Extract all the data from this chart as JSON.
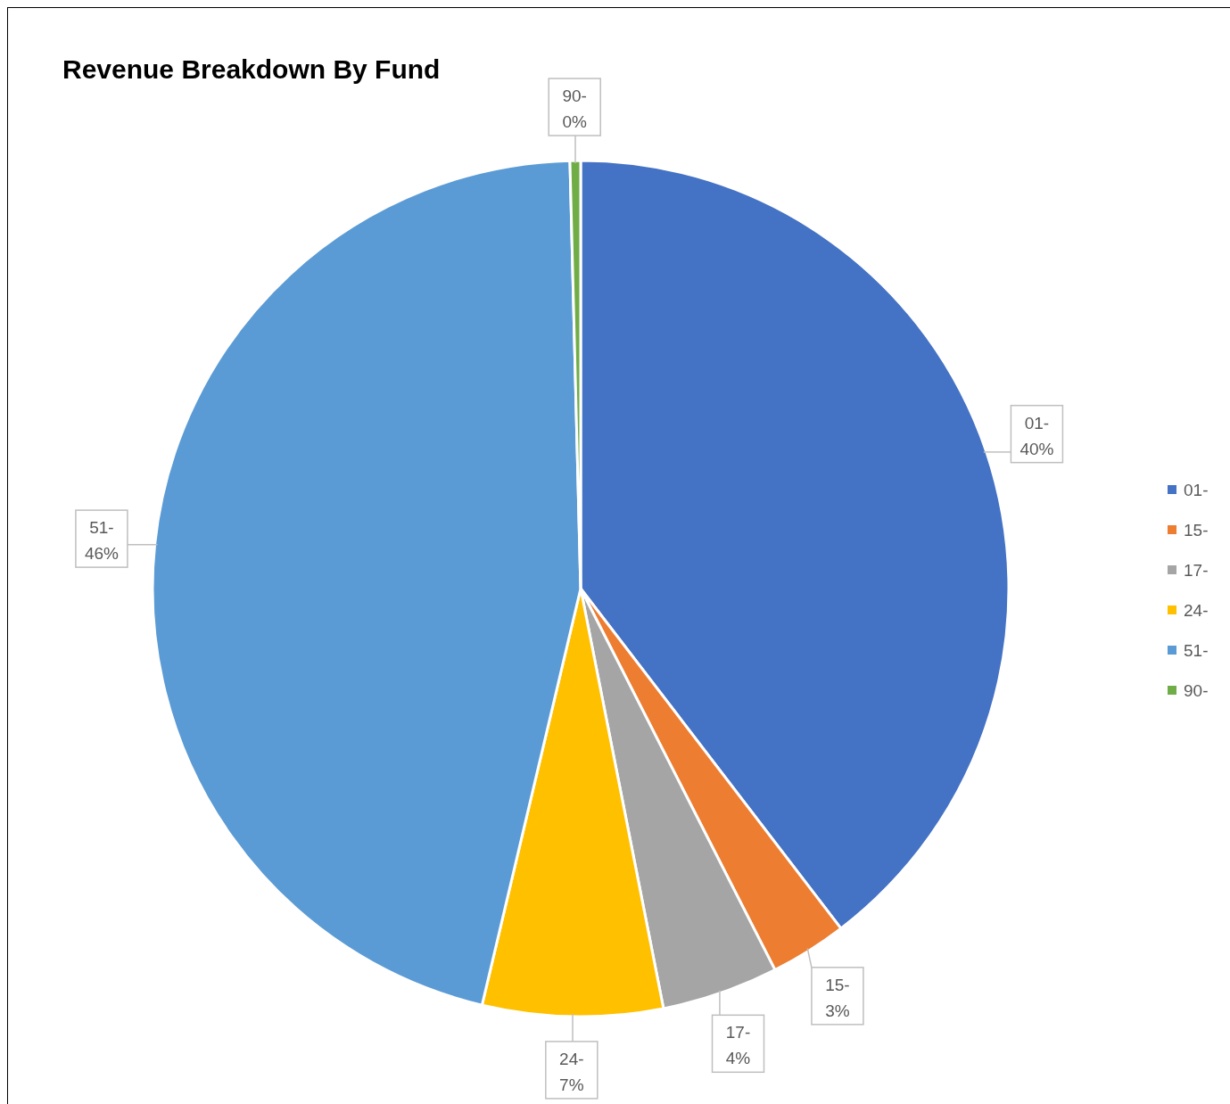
{
  "chart_data": {
    "type": "pie",
    "title": "Revenue Breakdown By Fund",
    "categories": [
      "01-",
      "15-",
      "17-",
      "24-",
      "51-",
      "90-"
    ],
    "values": [
      39.6,
      2.9,
      4.4,
      6.8,
      45.9,
      0.4
    ],
    "value_labels": [
      "40%",
      "3%",
      "4%",
      "7%",
      "46%",
      "0%"
    ],
    "colors": [
      "#4472c4",
      "#ed7d31",
      "#a5a5a5",
      "#ffc000",
      "#5b9bd5",
      "#70ad47"
    ],
    "legend": "right"
  }
}
